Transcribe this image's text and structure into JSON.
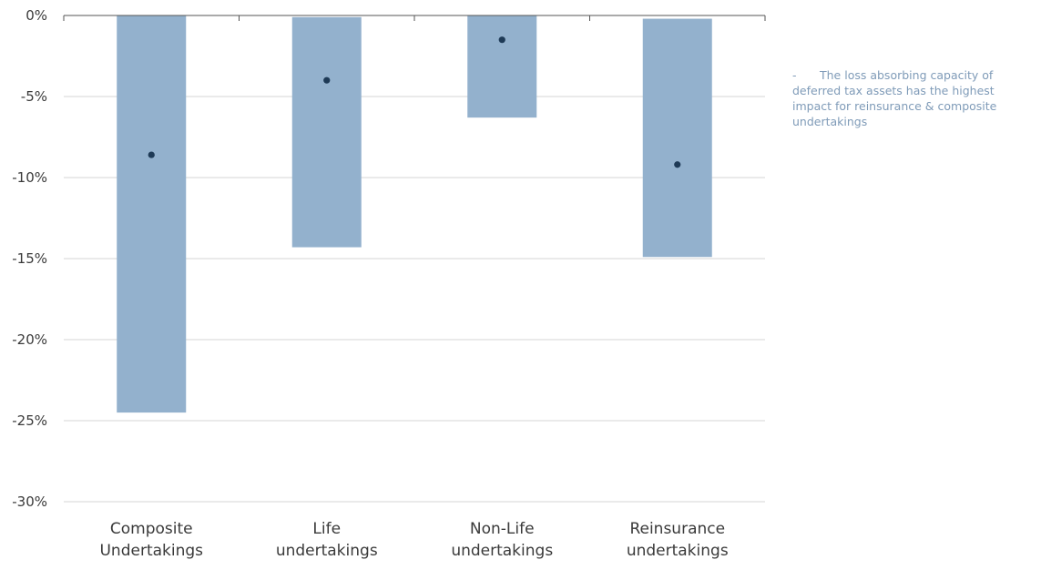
{
  "chart_data": {
    "type": "bar",
    "categories": [
      [
        "Composite",
        "Undertakings"
      ],
      [
        "Life",
        "undertakings"
      ],
      [
        "Non-Life",
        "undertakings"
      ],
      [
        "Reinsurance",
        "undertakings"
      ]
    ],
    "ranges": [
      {
        "top": 0,
        "bottom": -24.5
      },
      {
        "top": -0.1,
        "bottom": -14.3
      },
      {
        "top": 0,
        "bottom": -6.3
      },
      {
        "top": -0.2,
        "bottom": -14.9
      }
    ],
    "points": [
      -8.6,
      -4.0,
      -1.5,
      -9.2
    ],
    "yticks": [
      0,
      -5,
      -10,
      -15,
      -20,
      -25,
      -30
    ],
    "ytick_labels": [
      "0%",
      "-5%",
      "-10%",
      "-15%",
      "-20%",
      "-25%",
      "-30%"
    ],
    "ylim": [
      -30,
      0
    ],
    "title": "",
    "xlabel": "",
    "ylabel": "",
    "grid": true,
    "colors": {
      "bar": "#93b1cd",
      "dot": "#1e3a56",
      "grid": "#d4d4d4",
      "axis": "#555555"
    }
  },
  "note": {
    "bullet": "-",
    "text": "The loss absorbing capacity of deferred tax assets has the highest impact for reinsurance & composite undertakings"
  }
}
